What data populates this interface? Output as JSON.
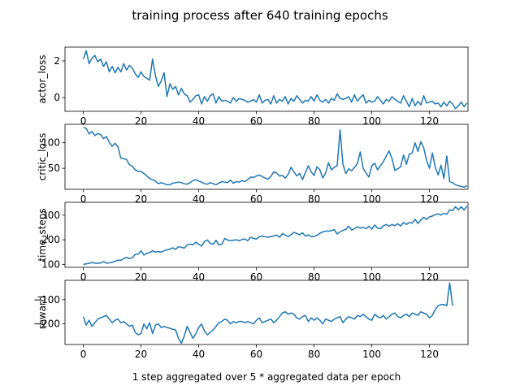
{
  "figure": {
    "title": "training process after 640 training epochs",
    "xlabel": "1 step aggregated over 5 * aggregated data per epoch",
    "line_color": "#1f77b4"
  },
  "chart_data": [
    {
      "type": "line",
      "ylabel": "actor_loss",
      "xlim": [
        -6.35,
        133.35
      ],
      "ylim": [
        -0.75,
        2.75
      ],
      "xticks": [
        0,
        20,
        40,
        60,
        80,
        100,
        120
      ],
      "yticks": [
        0,
        2
      ],
      "ytick_labels": [
        "0",
        "2"
      ],
      "show_xtick_labels": true,
      "series": [
        {
          "values": [
            2.1,
            2.55,
            1.85,
            2.15,
            2.3,
            1.95,
            2.1,
            1.7,
            1.95,
            1.4,
            1.7,
            1.35,
            1.65,
            1.4,
            1.85,
            1.5,
            1.75,
            1.6,
            1.3,
            1.1,
            1.4,
            1.15,
            1.05,
            0.95,
            2.1,
            1.2,
            0.6,
            0.9,
            1.35,
            0.05,
            0.75,
            0.45,
            0.6,
            0.15,
            0.5,
            0.2,
            0.1,
            -0.25,
            -0.1,
            0.1,
            0.15,
            -0.35,
            0.05,
            -0.2,
            0.1,
            0.2,
            -0.3,
            0.05,
            -0.2,
            -0.15,
            -0.2,
            -0.3,
            0.0,
            -0.2,
            -0.05,
            -0.1,
            -0.15,
            -0.25,
            -0.2,
            -0.1,
            -0.25,
            0.15,
            -0.3,
            -0.15,
            -0.1,
            -0.35,
            0.1,
            -0.3,
            -0.1,
            -0.2,
            0.05,
            -0.35,
            -0.05,
            -0.2,
            0.1,
            -0.1,
            -0.3,
            -0.15,
            -0.2,
            0.05,
            -0.2,
            0.15,
            -0.15,
            -0.25,
            -0.1,
            -0.3,
            -0.05,
            -0.15,
            0.2,
            -0.05,
            -0.1,
            -0.05,
            0.05,
            -0.25,
            0.15,
            -0.2,
            0.0,
            0.15,
            -0.3,
            -0.15,
            -0.25,
            -0.2,
            0.05,
            -0.15,
            -0.35,
            -0.1,
            -0.2,
            0.05,
            -0.1,
            -0.2,
            -0.3,
            0.1,
            -0.2,
            -0.5,
            -0.05,
            -0.45,
            -0.2,
            -0.4,
            0.1,
            -0.3,
            -0.25,
            -0.2,
            -0.35,
            -0.3,
            -0.5,
            -0.25,
            -0.45,
            -0.2,
            -0.35,
            -0.6,
            -0.45,
            -0.25,
            -0.5,
            -0.3
          ]
        }
      ]
    },
    {
      "type": "line",
      "ylabel": "critic_loss",
      "xlim": [
        -6.35,
        133.35
      ],
      "ylim": [
        9,
        136
      ],
      "xticks": [
        0,
        20,
        40,
        60,
        80,
        100,
        120
      ],
      "yticks": [
        50,
        100
      ],
      "ytick_labels": [
        "50",
        "100"
      ],
      "show_xtick_labels": true,
      "series": [
        {
          "values": [
            130,
            128,
            117,
            122,
            114,
            118,
            116,
            108,
            112,
            101,
            93,
            99,
            92,
            70,
            69,
            67,
            57,
            54,
            47,
            44,
            44,
            40,
            35,
            30,
            28,
            25,
            20,
            22,
            20,
            18,
            18,
            21,
            22,
            23,
            22,
            20,
            19,
            22,
            26,
            28,
            25,
            23,
            20,
            19,
            22,
            20,
            18,
            21,
            24,
            23,
            22,
            27,
            21,
            24,
            23,
            26,
            24,
            28,
            33,
            32,
            35,
            37,
            34,
            31,
            29,
            34,
            43,
            41,
            35,
            36,
            31,
            38,
            52,
            43,
            35,
            40,
            28,
            42,
            55,
            43,
            36,
            53,
            47,
            31,
            41,
            61,
            47,
            52,
            55,
            125,
            58,
            40,
            49,
            45,
            52,
            59,
            82,
            50,
            41,
            33,
            55,
            60,
            47,
            55,
            63,
            74,
            84,
            69,
            46,
            49,
            53,
            76,
            58,
            78,
            80,
            100,
            83,
            102,
            90,
            65,
            50,
            80,
            52,
            37,
            56,
            30,
            74,
            24,
            22,
            18,
            16,
            15,
            13,
            16
          ]
        }
      ]
    },
    {
      "type": "line",
      "ylabel": "time_steps",
      "xlim": [
        -6.35,
        133.35
      ],
      "ylim": [
        88,
        352
      ],
      "xticks": [
        0,
        20,
        40,
        60,
        80,
        100,
        120
      ],
      "yticks": [
        100,
        200,
        300
      ],
      "ytick_labels": [
        "100",
        "200",
        "300"
      ],
      "show_xtick_labels": true,
      "series": [
        {
          "values": [
            100,
            102,
            104,
            108,
            105,
            104,
            106,
            111,
            105,
            106,
            108,
            113,
            117,
            116,
            124,
            128,
            124,
            127,
            140,
            141,
            155,
            138,
            145,
            148,
            155,
            150,
            152,
            150,
            155,
            159,
            162,
            167,
            161,
            172,
            169,
            166,
            179,
            182,
            180,
            190,
            182,
            174,
            193,
            199,
            185,
            182,
            198,
            179,
            181,
            205,
            199,
            196,
            198,
            200,
            196,
            201,
            203,
            196,
            210,
            205,
            203,
            212,
            215,
            212,
            210,
            213,
            215,
            219,
            210,
            225,
            219,
            213,
            220,
            230,
            225,
            220,
            228,
            215,
            220,
            212,
            213,
            218,
            226,
            232,
            235,
            235,
            237,
            241,
            223,
            232,
            238,
            242,
            255,
            239,
            245,
            253,
            247,
            250,
            245,
            255,
            243,
            260,
            247,
            245,
            256,
            262,
            255,
            262,
            257,
            265,
            256,
            270,
            262,
            270,
            268,
            283,
            266,
            280,
            291,
            282,
            293,
            296,
            302,
            305,
            300,
            307,
            303,
            322,
            318,
            334,
            322,
            334,
            321,
            337
          ]
        }
      ]
    },
    {
      "type": "line",
      "ylabel": "reward",
      "xlim": [
        -6.35,
        133.35
      ],
      "ylim": [
        -285,
        -20
      ],
      "xticks": [
        0,
        20,
        40,
        60,
        80,
        100,
        120
      ],
      "xtick_labels": [
        "0",
        "20",
        "40",
        "60",
        "80",
        "100",
        "120"
      ],
      "yticks": [
        -200,
        -100
      ],
      "ytick_labels": [
        "−200",
        "−100"
      ],
      "show_xtick_labels": true,
      "series": [
        {
          "values": [
            -170,
            -205,
            -185,
            -210,
            -195,
            -180,
            -175,
            -170,
            -165,
            -180,
            -195,
            -185,
            -180,
            -195,
            -190,
            -200,
            -210,
            -205,
            -235,
            -245,
            -240,
            -200,
            -220,
            -195,
            -240,
            -205,
            -200,
            -215,
            -210,
            -215,
            -218,
            -222,
            -225,
            -260,
            -280,
            -250,
            -210,
            -235,
            -260,
            -240,
            -215,
            -200,
            -230,
            -245,
            -235,
            -225,
            -210,
            -195,
            -190,
            -180,
            -185,
            -200,
            -190,
            -195,
            -190,
            -190,
            -195,
            -190,
            -195,
            -200,
            -185,
            -175,
            -195,
            -190,
            -185,
            -180,
            -195,
            -185,
            -170,
            -155,
            -150,
            -160,
            -155,
            -160,
            -175,
            -180,
            -170,
            -165,
            -190,
            -175,
            -185,
            -175,
            -185,
            -200,
            -180,
            -185,
            -190,
            -180,
            -175,
            -170,
            -195,
            -180,
            -170,
            -175,
            -180,
            -165,
            -170,
            -160,
            -170,
            -180,
            -185,
            -160,
            -170,
            -175,
            -165,
            -180,
            -170,
            -160,
            -155,
            -170,
            -175,
            -165,
            -160,
            -170,
            -155,
            -160,
            -165,
            -150,
            -155,
            -160,
            -175,
            -165,
            -140,
            -125,
            -120,
            -120,
            -125,
            -30,
            -125
          ]
        }
      ]
    }
  ]
}
